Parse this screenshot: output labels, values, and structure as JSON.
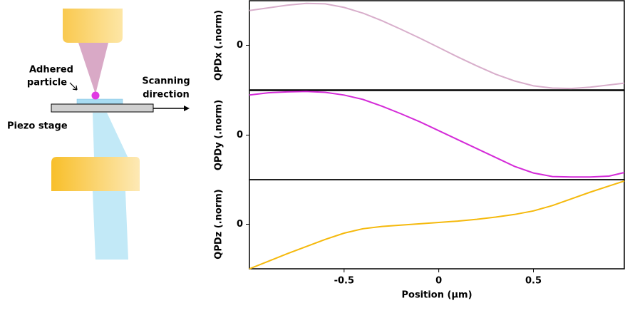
{
  "diagram": {
    "particle_label": [
      "Adhered",
      "particle"
    ],
    "scan_label": [
      "Scanning",
      "direction"
    ],
    "stage_label": "Piezo stage"
  },
  "chart_data": [
    {
      "type": "line",
      "ylabel": "QPDx (.norm)",
      "color": "#d8aecb",
      "x": [
        -1,
        -0.9,
        -0.8,
        -0.7,
        -0.6,
        -0.5,
        -0.4,
        -0.3,
        -0.2,
        -0.1,
        0,
        0.1,
        0.2,
        0.3,
        0.4,
        0.5,
        0.6,
        0.7,
        0.8,
        0.9,
        0.98
      ],
      "values": [
        0.78,
        0.84,
        0.9,
        0.94,
        0.93,
        0.85,
        0.72,
        0.55,
        0.36,
        0.16,
        -0.05,
        -0.26,
        -0.46,
        -0.65,
        -0.8,
        -0.91,
        -0.96,
        -0.97,
        -0.94,
        -0.89,
        -0.85
      ],
      "xlim": [
        -1,
        0.98
      ],
      "ylim": [
        -1,
        1
      ],
      "yticks": [
        0
      ]
    },
    {
      "type": "line",
      "ylabel": "QPDy (.norm)",
      "color": "#d42bd8",
      "x": [
        -1,
        -0.9,
        -0.8,
        -0.7,
        -0.6,
        -0.5,
        -0.4,
        -0.3,
        -0.2,
        -0.1,
        0,
        0.1,
        0.2,
        0.3,
        0.4,
        0.5,
        0.6,
        0.7,
        0.8,
        0.9,
        0.98
      ],
      "values": [
        0.9,
        0.95,
        0.97,
        0.98,
        0.96,
        0.9,
        0.8,
        0.65,
        0.48,
        0.3,
        0.1,
        -0.1,
        -0.3,
        -0.5,
        -0.7,
        -0.85,
        -0.93,
        -0.94,
        -0.94,
        -0.92,
        -0.84
      ],
      "xlim": [
        -1,
        0.98
      ],
      "ylim": [
        -1,
        1
      ],
      "yticks": [
        0
      ]
    },
    {
      "type": "line",
      "ylabel": "QPDz (.norm)",
      "xlabel": "Position (μm)",
      "color": "#f5b90c",
      "x": [
        -1,
        -0.9,
        -0.8,
        -0.7,
        -0.6,
        -0.5,
        -0.4,
        -0.3,
        -0.2,
        -0.1,
        0,
        0.1,
        0.2,
        0.3,
        0.4,
        0.5,
        0.6,
        0.7,
        0.8,
        0.9,
        0.98
      ],
      "values": [
        -1,
        -0.83,
        -0.66,
        -0.5,
        -0.34,
        -0.2,
        -0.1,
        -0.05,
        -0.02,
        0.01,
        0.04,
        0.07,
        0.11,
        0.16,
        0.22,
        0.3,
        0.42,
        0.57,
        0.72,
        0.86,
        0.97
      ],
      "xlim": [
        -1,
        0.98
      ],
      "ylim": [
        -1,
        1
      ],
      "yticks": [
        0
      ],
      "xticks": [
        -0.5,
        0,
        0.5
      ]
    }
  ]
}
